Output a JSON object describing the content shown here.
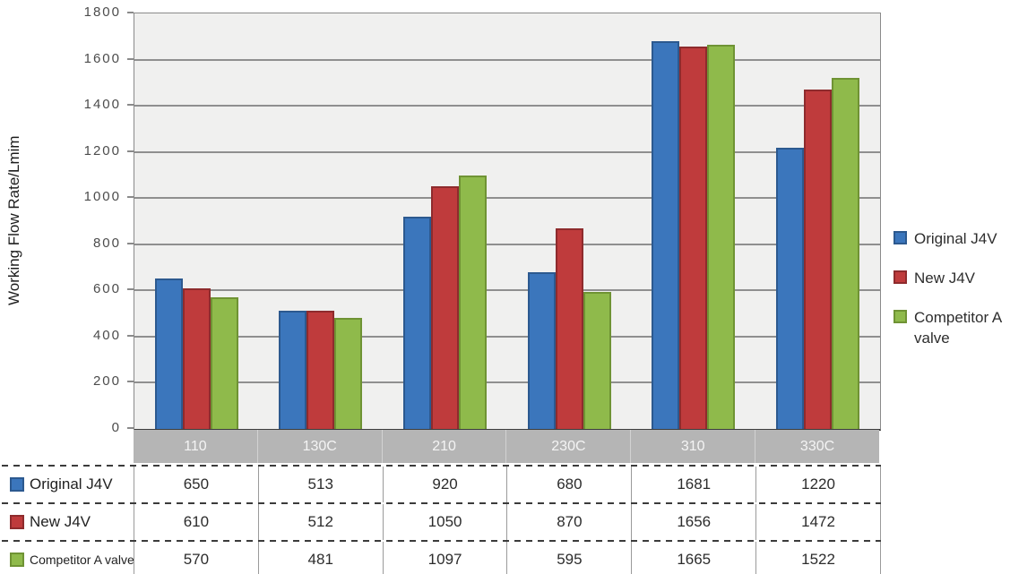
{
  "chart_data": {
    "type": "bar",
    "title": "",
    "ylabel": "Working Flow Rate/Lmim",
    "xlabel": "",
    "ylim": [
      0,
      1800
    ],
    "ytick_step": 200,
    "grid": true,
    "legend_position": "right",
    "plot_background": "#f0f0ef",
    "gridline_color": "#8f8f8f",
    "category_band_color": "#b5b5b5",
    "category_label_color": "#f4f4f4",
    "categories": [
      "110",
      "130C",
      "210",
      "230C",
      "310",
      "330C"
    ],
    "series": [
      {
        "name": "Original J4V",
        "color": "#3b76bc",
        "border_color": "#2c598f",
        "values": [
          650,
          513,
          920,
          680,
          1681,
          1220
        ]
      },
      {
        "name": "New J4V",
        "color": "#bf3b3c",
        "border_color": "#8e2b2d",
        "values": [
          610,
          512,
          1050,
          870,
          1656,
          1472
        ]
      },
      {
        "name": "Competitor A valve",
        "color": "#8fba4b",
        "border_color": "#6f9334",
        "values": [
          570,
          481,
          1097,
          595,
          1665,
          1522
        ]
      }
    ]
  },
  "legend": {
    "items": [
      "Original J4V",
      "New J4V",
      "Competitor A valve"
    ]
  },
  "table": {
    "row_labels": [
      "Original J4V",
      "New J4V",
      "Competitor A valve"
    ],
    "column_headers": [
      "110",
      "130C",
      "210",
      "230C",
      "310",
      "330C"
    ],
    "rows": [
      [
        "650",
        "513",
        "920",
        "680",
        "1681",
        "1220"
      ],
      [
        "610",
        "512",
        "1050",
        "870",
        "1656",
        "1472"
      ],
      [
        "570",
        "481",
        "1097",
        "595",
        "1665",
        "1522"
      ]
    ]
  }
}
